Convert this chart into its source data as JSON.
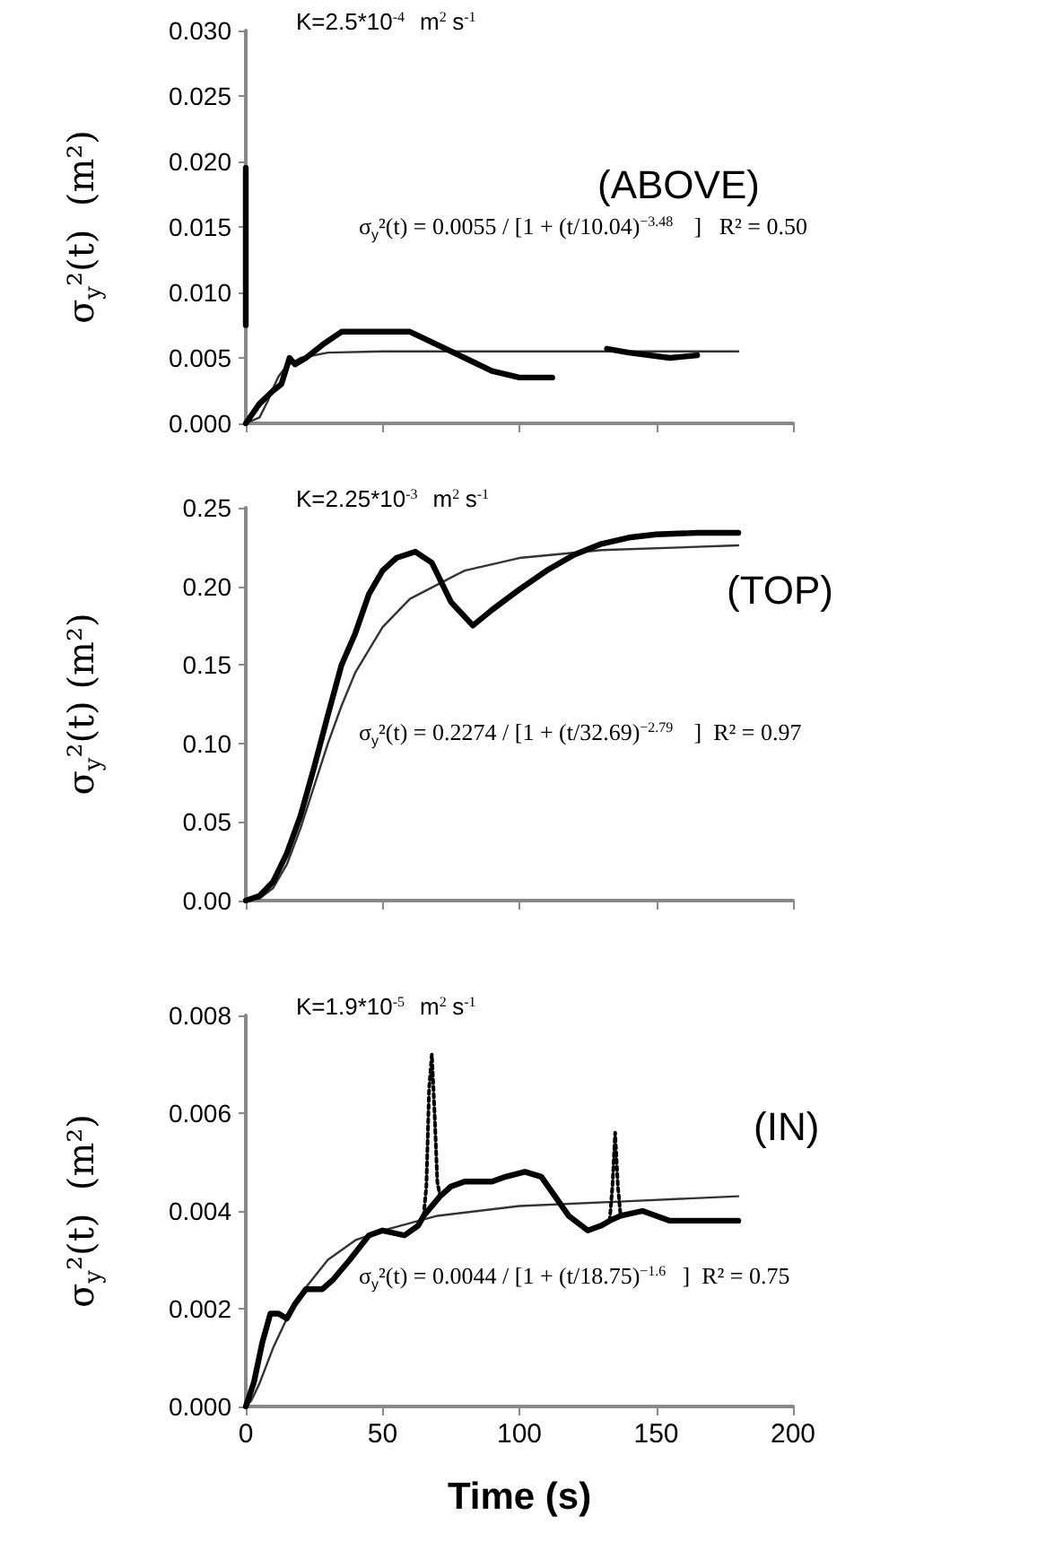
{
  "chart_data": [
    {
      "type": "line",
      "ylabel": "σ$_{y}$²(t)  (m²)",
      "marker": "none",
      "tick_labels": "y",
      "annotations": [
        "K=2.5*10$^{-4}$ m$^{2}$s$^{-1}$",
        "(ABOVE)",
        "σ$_{y}$²(t) = 0.0055 / [1 + (t/10.04)$^{−3.48}$]   R² = 0.50"
      ],
      "xlim": [
        0,
        200
      ],
      "xticks": [
        {
          "value": 0,
          "label": null
        },
        {
          "value": 50,
          "label": null
        },
        {
          "value": 100,
          "label": null
        },
        {
          "value": 150,
          "label": null
        },
        {
          "value": 200,
          "label": null
        }
      ],
      "ylim": [
        0,
        0.03
      ],
      "yticks": [
        {
          "value": 0,
          "label": "0.000"
        },
        {
          "value": 0.005,
          "label": "0.005"
        },
        {
          "value": 0.01,
          "label": "0.010"
        },
        {
          "value": 0.015,
          "label": "0.015"
        },
        {
          "value": 0.02,
          "label": "0.020"
        },
        {
          "value": 0.025,
          "label": "0.025"
        },
        {
          "value": 0.03,
          "label": "0.030"
        }
      ],
      "series": [
        {
          "color": "#000000",
          "x": [
            0,
            0
          ],
          "values": [
            0.0195,
            0.0075
          ]
        },
        {
          "color": "#000000",
          "x": [
            0,
            5,
            10,
            13,
            16,
            18,
            22,
            28,
            35,
            50,
            60,
            70,
            80,
            90,
            100,
            112
          ],
          "values": [
            0,
            0.0015,
            0.0025,
            0.003,
            0.005,
            0.0045,
            0.005,
            0.006,
            0.007,
            0.007,
            0.007,
            0.006,
            0.005,
            0.004,
            0.0035,
            0.0035
          ]
        },
        {
          "color": "#000000",
          "x": [
            132,
            140,
            155,
            165
          ],
          "values": [
            0.0057,
            0.0054,
            0.005,
            0.0052
          ]
        },
        {
          "color": "#333333",
          "x": [
            0,
            5,
            8,
            10,
            12,
            15,
            20,
            30,
            50,
            100,
            180
          ],
          "values": [
            0,
            0.00045,
            0.0017,
            0.0027,
            0.0036,
            0.0044,
            0.005,
            0.0054,
            0.0055,
            0.0055,
            0.0055
          ]
        }
      ]
    },
    {
      "type": "line",
      "ylabel": "σ$_{y}$²(t) (m²)",
      "marker": "none",
      "tick_labels": "y",
      "annotations": [
        "K=2.25*10$^{-3}$ m$^{2}$s$^{-1}$",
        "(TOP)",
        "σ$_{y}$²(t) = 0.2274 / [1 + (t/32.69)$^{−2.79}$]  R² = 0.97"
      ],
      "xlim": [
        0,
        200
      ],
      "xticks": [
        {
          "value": 0,
          "label": null
        },
        {
          "value": 50,
          "label": null
        },
        {
          "value": 100,
          "label": null
        },
        {
          "value": 150,
          "label": null
        },
        {
          "value": 200,
          "label": null
        }
      ],
      "ylim": [
        0,
        0.25
      ],
      "yticks": [
        {
          "value": 0,
          "label": "0.00"
        },
        {
          "value": 0.05,
          "label": "0.05"
        },
        {
          "value": 0.1,
          "label": "0.10"
        },
        {
          "value": 0.15,
          "label": "0.15"
        },
        {
          "value": 0.2,
          "label": "0.20"
        },
        {
          "value": 0.25,
          "label": "0.25"
        }
      ],
      "series": [
        {
          "color": "#000000",
          "x": [
            0,
            5,
            10,
            15,
            20,
            25,
            30,
            35,
            40,
            45,
            50,
            55,
            62,
            68,
            75,
            83,
            90,
            100,
            110,
            120,
            130,
            140,
            150,
            165,
            180
          ],
          "values": [
            0,
            0.003,
            0.012,
            0.03,
            0.054,
            0.085,
            0.118,
            0.15,
            0.17,
            0.195,
            0.21,
            0.218,
            0.222,
            0.215,
            0.19,
            0.175,
            0.185,
            0.198,
            0.21,
            0.22,
            0.227,
            0.231,
            0.233,
            0.234,
            0.234
          ]
        },
        {
          "color": "#333333",
          "x": [
            0,
            5,
            10,
            15,
            20,
            25,
            30,
            35,
            40,
            50,
            60,
            80,
            100,
            130,
            180
          ],
          "values": [
            0,
            0.0012,
            0.008,
            0.023,
            0.046,
            0.073,
            0.1,
            0.124,
            0.145,
            0.174,
            0.192,
            0.21,
            0.218,
            0.223,
            0.226
          ]
        }
      ]
    },
    {
      "type": "line",
      "ylabel": "σ$_{y}$²(t)  (m²)",
      "xlabel": "Time (s)",
      "marker": "none",
      "annotations": [
        "K=1.9*10$^{-5}$ m$^{2}$s$^{-1}$",
        "(IN)",
        "σ$_{y}$²(t) = 0.0044 / [1 + (t/18.75)$^{−1.6}$]  R² = 0.75"
      ],
      "xlim": [
        0,
        200
      ],
      "xticks": [
        0,
        50,
        100,
        150,
        200
      ],
      "ylim": [
        0,
        0.008
      ],
      "yticks": [
        {
          "value": 0,
          "label": "0.000"
        },
        {
          "value": 0.002,
          "label": "0.002"
        },
        {
          "value": 0.004,
          "label": "0.004"
        },
        {
          "value": 0.006,
          "label": "0.006"
        },
        {
          "value": 0.008,
          "label": "0.008"
        }
      ],
      "series": [
        {
          "color": "#000000",
          "x": [
            0,
            3,
            6,
            9,
            12,
            15,
            18,
            22,
            28,
            32,
            38,
            45,
            50,
            58,
            63,
            65,
            71,
            75,
            80,
            90,
            95,
            102,
            108,
            113,
            118,
            125,
            130,
            133,
            137,
            145,
            155,
            165,
            180
          ],
          "values": [
            0,
            0.0005,
            0.0013,
            0.0019,
            0.0019,
            0.0018,
            0.0021,
            0.0024,
            0.0024,
            0.0026,
            0.003,
            0.0035,
            0.0036,
            0.0035,
            0.0037,
            0.0039,
            0.0043,
            0.0045,
            0.0046,
            0.0046,
            0.0047,
            0.0048,
            0.0047,
            0.0043,
            0.0039,
            0.0036,
            0.0037,
            0.0038,
            0.0039,
            0.004,
            0.0038,
            0.0038,
            0.0038
          ]
        },
        {
          "color": "#000000",
          "line_style": "dotted",
          "x": [
            65,
            66,
            67,
            68,
            69,
            70,
            71
          ],
          "values": [
            0.0039,
            0.0045,
            0.0065,
            0.0072,
            0.006,
            0.0046,
            0.0043
          ]
        },
        {
          "color": "#000000",
          "line_style": "dotted",
          "x": [
            133,
            134,
            135,
            136,
            137
          ],
          "values": [
            0.0038,
            0.0045,
            0.0056,
            0.0045,
            0.0039
          ]
        },
        {
          "color": "#333333",
          "x": [
            0,
            2,
            5,
            10,
            15,
            20,
            30,
            40,
            50,
            70,
            100,
            140,
            180
          ],
          "values": [
            0,
            0.00012,
            0.00047,
            0.0012,
            0.0018,
            0.0023,
            0.003,
            0.0034,
            0.0036,
            0.0039,
            0.0041,
            0.0042,
            0.0043
          ]
        }
      ]
    }
  ]
}
